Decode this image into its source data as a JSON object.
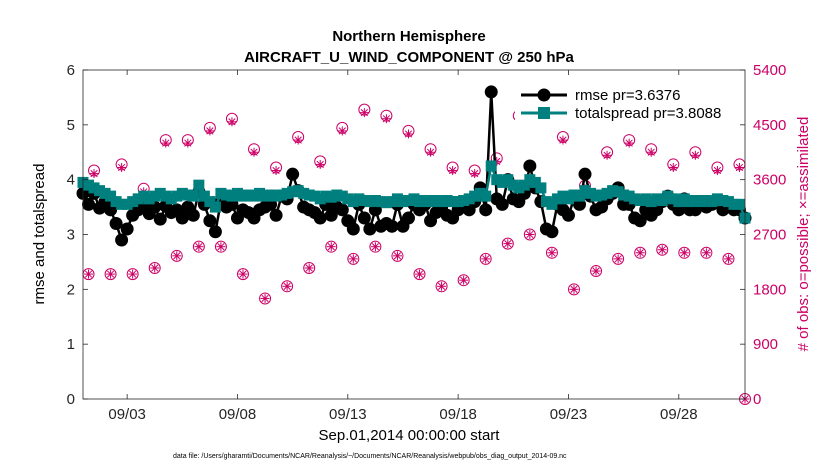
{
  "chart_data": {
    "type": "line",
    "title": "Northern Hemisphere",
    "subtitle": "AIRCRAFT_U_WIND_COMPONENT @ 250 hPa",
    "xlabel": "Sep.01,2014 00:00:00 start",
    "ylabel_left": "rmse and totalspread",
    "ylabel_right": "# of obs: o=possible; ×=assimilated",
    "footnote": "data file: /Users/gharamti/Documents/NCAR/Reanalysis/~/Documents/NCAR/Reanalysis/webpub/obs_diag_output_2014-09.nc",
    "xlim": [
      1,
      31
    ],
    "ylim_left": [
      0,
      6
    ],
    "ylim_right": [
      0,
      5400
    ],
    "x_ticks": [
      3,
      8,
      13,
      18,
      23,
      28
    ],
    "x_tick_labels": [
      "09/03",
      "09/08",
      "09/13",
      "09/18",
      "09/23",
      "09/28"
    ],
    "y_ticks_left": [
      0,
      1,
      2,
      3,
      4,
      5,
      6
    ],
    "y_ticks_right": [
      0,
      900,
      1800,
      2700,
      3600,
      4500,
      5400
    ],
    "colors": {
      "rmse": "#000000",
      "spread": "#007f7f",
      "obs": "#cc0066"
    },
    "x": [
      1.0,
      1.25,
      1.5,
      1.75,
      2.0,
      2.25,
      2.5,
      2.75,
      3.0,
      3.25,
      3.5,
      3.75,
      4.0,
      4.25,
      4.5,
      4.75,
      5.0,
      5.25,
      5.5,
      5.75,
      6.0,
      6.25,
      6.5,
      6.75,
      7.0,
      7.25,
      7.5,
      7.75,
      8.0,
      8.25,
      8.5,
      8.75,
      9.0,
      9.25,
      9.5,
      9.75,
      10.0,
      10.25,
      10.5,
      10.75,
      11.0,
      11.25,
      11.5,
      11.75,
      12.0,
      12.25,
      12.5,
      12.75,
      13.0,
      13.25,
      13.5,
      13.75,
      14.0,
      14.25,
      14.5,
      14.75,
      15.0,
      15.25,
      15.5,
      15.75,
      16.0,
      16.25,
      16.5,
      16.75,
      17.0,
      17.25,
      17.5,
      17.75,
      18.0,
      18.25,
      18.5,
      18.75,
      19.0,
      19.25,
      19.5,
      19.75,
      20.0,
      20.25,
      20.5,
      20.75,
      21.0,
      21.25,
      21.5,
      21.75,
      22.0,
      22.25,
      22.5,
      22.75,
      23.0,
      23.25,
      23.5,
      23.75,
      24.0,
      24.25,
      24.5,
      24.75,
      25.0,
      25.25,
      25.5,
      25.75,
      26.0,
      26.25,
      26.5,
      26.75,
      27.0,
      27.25,
      27.5,
      27.75,
      28.0,
      28.25,
      28.5,
      28.75,
      29.0,
      29.25,
      29.5,
      29.75,
      30.0,
      30.25,
      30.5,
      30.75,
      31.0
    ],
    "series": [
      {
        "name": "rmse pr=3.6376",
        "values": [
          3.75,
          3.55,
          3.75,
          3.48,
          3.6,
          3.45,
          3.2,
          2.9,
          3.1,
          3.35,
          3.45,
          3.55,
          3.38,
          3.5,
          3.28,
          3.52,
          3.4,
          3.45,
          3.3,
          3.5,
          3.35,
          3.78,
          3.55,
          3.25,
          3.05,
          3.6,
          3.5,
          3.55,
          3.3,
          3.45,
          3.4,
          3.3,
          3.45,
          3.5,
          3.55,
          3.35,
          3.7,
          3.65,
          4.1,
          3.8,
          3.5,
          3.45,
          3.4,
          3.3,
          3.55,
          3.35,
          3.5,
          3.45,
          3.25,
          3.1,
          3.55,
          3.3,
          3.1,
          3.45,
          3.15,
          3.2,
          3.15,
          3.55,
          3.15,
          3.3,
          3.55,
          3.45,
          3.55,
          3.25,
          3.4,
          3.5,
          3.35,
          3.3,
          3.45,
          3.55,
          3.45,
          3.6,
          3.85,
          3.45,
          5.6,
          3.65,
          3.55,
          4.0,
          3.65,
          3.6,
          3.75,
          4.25,
          3.85,
          3.6,
          3.1,
          3.05,
          3.55,
          3.45,
          3.35,
          3.65,
          3.55,
          4.1,
          3.7,
          3.45,
          3.5,
          3.65,
          3.75,
          3.85,
          3.55,
          3.55,
          3.3,
          3.25,
          3.45,
          3.35,
          3.45,
          3.6,
          3.7,
          3.55,
          3.45,
          3.65,
          3.45,
          3.45,
          3.6,
          3.5,
          3.55,
          3.6,
          3.45,
          3.55,
          3.45,
          3.45,
          3.3
        ]
      },
      {
        "name": "totalspread pr=3.8088",
        "values": [
          3.95,
          3.9,
          3.85,
          3.8,
          3.75,
          3.7,
          3.6,
          3.55,
          3.55,
          3.6,
          3.65,
          3.7,
          3.65,
          3.7,
          3.75,
          3.7,
          3.65,
          3.7,
          3.75,
          3.72,
          3.7,
          3.9,
          3.7,
          3.6,
          3.5,
          3.75,
          3.72,
          3.7,
          3.75,
          3.7,
          3.72,
          3.7,
          3.75,
          3.7,
          3.72,
          3.7,
          3.72,
          3.75,
          3.78,
          3.8,
          3.75,
          3.72,
          3.7,
          3.65,
          3.7,
          3.68,
          3.72,
          3.7,
          3.65,
          3.6,
          3.65,
          3.62,
          3.6,
          3.62,
          3.6,
          3.58,
          3.6,
          3.65,
          3.6,
          3.62,
          3.65,
          3.6,
          3.62,
          3.6,
          3.62,
          3.6,
          3.62,
          3.6,
          3.6,
          3.62,
          3.65,
          3.7,
          3.75,
          3.7,
          4.25,
          4.0,
          3.95,
          4.0,
          3.9,
          3.85,
          3.9,
          4.0,
          3.95,
          3.85,
          3.6,
          3.55,
          3.65,
          3.7,
          3.65,
          3.72,
          3.7,
          3.8,
          3.75,
          3.7,
          3.72,
          3.75,
          3.8,
          3.78,
          3.72,
          3.7,
          3.65,
          3.62,
          3.65,
          3.6,
          3.65,
          3.62,
          3.7,
          3.65,
          3.6,
          3.65,
          3.6,
          3.62,
          3.6,
          3.62,
          3.6,
          3.65,
          3.62,
          3.6,
          3.55,
          3.55,
          3.3
        ]
      }
    ],
    "obs_x": [
      1.25,
      1.5,
      2.25,
      2.75,
      3.25,
      3.75,
      4.25,
      4.75,
      5.25,
      5.75,
      6.25,
      6.75,
      7.25,
      7.75,
      8.25,
      8.75,
      9.25,
      9.75,
      10.25,
      10.75,
      11.25,
      11.75,
      12.25,
      12.75,
      13.25,
      13.75,
      14.25,
      14.75,
      15.25,
      15.75,
      16.25,
      16.75,
      17.25,
      17.75,
      18.25,
      18.75,
      19.25,
      19.75,
      20.25,
      20.75,
      21.25,
      21.75,
      22.25,
      22.75,
      23.25,
      23.75,
      24.25,
      24.75,
      25.25,
      25.75,
      26.25,
      26.75,
      27.25,
      27.75,
      28.25,
      28.75,
      29.25,
      29.75,
      30.25,
      30.75
    ],
    "obs_possible": [
      2050,
      3750,
      2050,
      3850,
      2050,
      3450,
      2150,
      4250,
      2350,
      4250,
      2500,
      4450,
      2500,
      4600,
      2050,
      4100,
      1650,
      3800,
      1850,
      4300,
      2150,
      3900,
      2500,
      4450,
      2300,
      4750,
      2500,
      4650,
      2350,
      4400,
      2050,
      4100,
      1850,
      3800,
      1950,
      3750,
      2300,
      3950,
      2550,
      4650,
      2700,
      4550,
      2400,
      4300,
      1800,
      3500,
      2100,
      4050,
      2300,
      4250,
      2400,
      4100,
      2450,
      3850,
      2400,
      4050,
      2400,
      3800,
      2300,
      3850
    ],
    "obs_assimilated": [
      2050,
      3700,
      2050,
      3800,
      2050,
      3400,
      2150,
      4200,
      2350,
      4200,
      2500,
      4400,
      2500,
      4550,
      2050,
      4050,
      1650,
      3750,
      1850,
      4250,
      2150,
      3850,
      2500,
      4400,
      2300,
      4700,
      2500,
      4600,
      2350,
      4350,
      2050,
      4050,
      1850,
      3750,
      1950,
      3700,
      2300,
      3900,
      2550,
      4600,
      2700,
      4500,
      2400,
      4250,
      1800,
      3450,
      2100,
      4000,
      2300,
      4200,
      2400,
      4050,
      2450,
      3800,
      2400,
      4000,
      2400,
      3750,
      2300,
      3800
    ]
  }
}
